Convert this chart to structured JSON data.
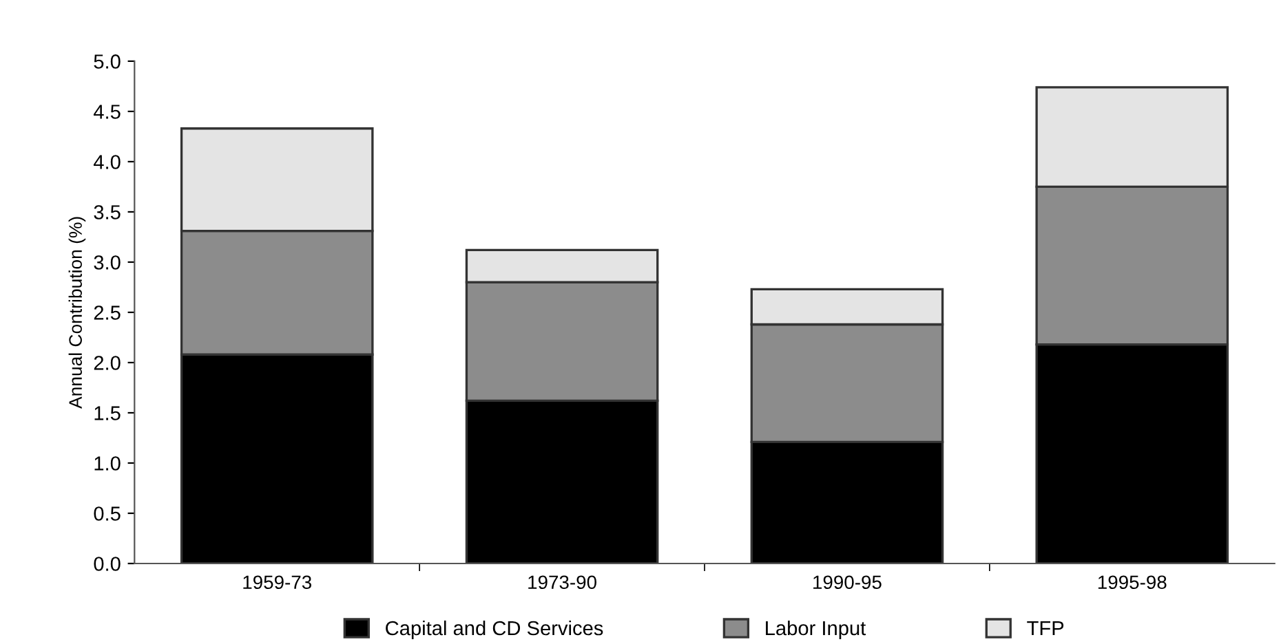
{
  "chart_data": {
    "type": "bar",
    "stacked": true,
    "ylabel": "Annual Contribution (%)",
    "categories": [
      "1959-73",
      "1973-90",
      "1990-95",
      "1995-98"
    ],
    "series": [
      {
        "name": "Capital and CD Services",
        "color": "#000000",
        "values": [
          2.08,
          1.62,
          1.21,
          2.18
        ]
      },
      {
        "name": "Labor Input",
        "color": "#8c8c8c",
        "values": [
          1.23,
          1.18,
          1.17,
          1.57
        ]
      },
      {
        "name": "TFP",
        "color": "#e4e4e4",
        "values": [
          1.02,
          0.32,
          0.35,
          0.99
        ]
      }
    ],
    "ylim": [
      0,
      5
    ],
    "yticks": [
      {
        "value": 0,
        "label": "0.0"
      },
      {
        "value": 0.5,
        "label": "0.5"
      },
      {
        "value": 1,
        "label": "1.0"
      },
      {
        "value": 1.5,
        "label": "1.5"
      },
      {
        "value": 2,
        "label": "2.0"
      },
      {
        "value": 2.5,
        "label": "2.5"
      },
      {
        "value": 3,
        "label": "3.0"
      },
      {
        "value": 3.5,
        "label": "3.5"
      },
      {
        "value": 4,
        "label": "4.0"
      },
      {
        "value": 4.5,
        "label": "4.5"
      },
      {
        "value": 5,
        "label": "5.0"
      }
    ],
    "grid": false,
    "legend": "bottom"
  }
}
